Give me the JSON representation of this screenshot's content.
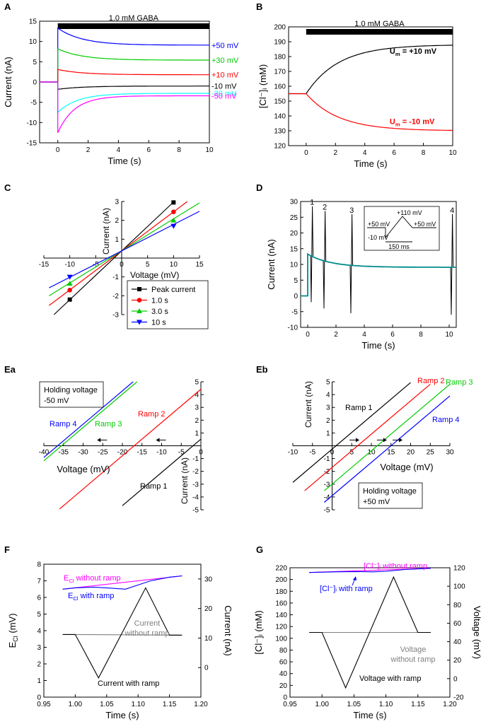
{
  "figure": {
    "colors": {
      "black": "#000000",
      "blue": "#0000ff",
      "green": "#00cc00",
      "red": "#ff0000",
      "cyan": "#00ffff",
      "magenta": "#ff00ff",
      "teal": "#008b8b",
      "gray": "#808080"
    }
  },
  "chart_data": [
    {
      "id": "A",
      "panel_label": "A",
      "type": "line",
      "title": "1.0 mM GABA",
      "xlabel": "Time (s)",
      "ylabel": "Current (nA)",
      "xlim": [
        -1.2,
        10
      ],
      "ylim": [
        -15,
        15
      ],
      "xticks": [
        0,
        2,
        4,
        6,
        8,
        10
      ],
      "xtick_labels": [
        "0",
        "2",
        "4",
        "6",
        "8",
        "10"
      ],
      "yticks": [
        -15,
        -10,
        -5,
        0,
        5,
        10,
        15
      ],
      "ytick_labels": [
        "-15",
        "-10",
        "-5",
        "0",
        "5",
        "10",
        "15"
      ],
      "gaba_bar": [
        0,
        10
      ],
      "series": [
        {
          "name": "+50 mV",
          "color": "#0000ff",
          "pre": 0,
          "peak": 13.3,
          "steady": 9.1,
          "tau": 1.6
        },
        {
          "name": "+30 mV",
          "color": "#00cc00",
          "pre": 0,
          "peak": 8.2,
          "steady": 5.4,
          "tau": 1.6
        },
        {
          "name": "+10 mV",
          "color": "#ff0000",
          "pre": 0,
          "peak": 3.1,
          "steady": 1.8,
          "tau": 1.6
        },
        {
          "name": "-10 mV",
          "color": "#000000",
          "pre": 0,
          "peak": -1.8,
          "steady": -1.0,
          "tau": 1.6
        },
        {
          "name": "-30 mV",
          "color": "#00ffff",
          "pre": 0,
          "peak": -7.5,
          "steady": -2.8,
          "tau": 1.3
        },
        {
          "name": "-50 mV",
          "color": "#ff00ff",
          "pre": 0,
          "peak": -12.5,
          "steady": -3.4,
          "tau": 1.1
        }
      ]
    },
    {
      "id": "B",
      "panel_label": "B",
      "type": "line",
      "title": "1.0 mM GABA",
      "xlabel": "Time (s)",
      "ylabel": "[Cl⁻]ᵢ (mM)",
      "xlim": [
        -1.2,
        10
      ],
      "ylim": [
        120,
        200
      ],
      "xticks": [
        0,
        2,
        4,
        6,
        8,
        10
      ],
      "xtick_labels": [
        "0",
        "2",
        "4",
        "6",
        "8",
        "10"
      ],
      "yticks": [
        120,
        130,
        140,
        150,
        160,
        170,
        180,
        190,
        200
      ],
      "ytick_labels": [
        "120",
        "130",
        "140",
        "150",
        "160",
        "170",
        "180",
        "190",
        "200"
      ],
      "gaba_bar": [
        0,
        10
      ],
      "series": [
        {
          "name": "U_m = +10 mV",
          "label_main": "U",
          "label_sub": "m",
          "label_rest": " = +10 mV",
          "color": "#000000",
          "start": 155,
          "steady": 188,
          "tau": 2.2
        },
        {
          "name": "U_m = -10 mV",
          "label_main": "U",
          "label_sub": "m",
          "label_rest": " = -10 mV",
          "color": "#ff0000",
          "start": 155,
          "steady": 130,
          "tau": 2.2
        }
      ]
    },
    {
      "id": "C",
      "panel_label": "C",
      "type": "scatter",
      "xlabel": "Voltage (mV)",
      "ylabel": "Current (nA)",
      "xlim": [
        -15,
        15
      ],
      "ylim": [
        -3,
        3
      ],
      "xticks": [
        -15,
        -10,
        -5,
        0,
        5,
        10,
        15
      ],
      "xtick_labels": [
        "-15",
        "-10",
        "-5",
        "0",
        "5",
        "10",
        "15"
      ],
      "yticks": [
        -3,
        -2,
        -1,
        1,
        2,
        3
      ],
      "ytick_labels": [
        "-3",
        "-2",
        "-1",
        "1",
        "2",
        "3"
      ],
      "legend": "lower-right",
      "series": [
        {
          "name": "Peak current",
          "color": "#000000",
          "marker": "square",
          "x": [
            -10,
            10
          ],
          "y": [
            -2.2,
            2.95
          ],
          "slope": 0.259,
          "intercept": 0.38
        },
        {
          "name": "1.0 s",
          "color": "#ff0000",
          "marker": "circle",
          "x": [
            -10,
            10
          ],
          "y": [
            -1.7,
            2.45
          ],
          "slope": 0.207,
          "intercept": 0.38
        },
        {
          "name": "3.0 s",
          "color": "#00cc00",
          "marker": "triangle-up",
          "x": [
            -10,
            10
          ],
          "y": [
            -1.35,
            2.0
          ],
          "slope": 0.17,
          "intercept": 0.38
        },
        {
          "name": "10 s",
          "color": "#0000ff",
          "marker": "triangle-down",
          "x": [
            -10,
            10
          ],
          "y": [
            -1.0,
            1.7
          ],
          "slope": 0.14,
          "intercept": 0.38
        }
      ]
    },
    {
      "id": "D",
      "panel_label": "D",
      "type": "line",
      "xlabel": "Time (s)",
      "ylabel": "Current (nA)",
      "xlim": [
        -0.5,
        10.5
      ],
      "ylim": [
        -10,
        30
      ],
      "xticks": [
        0,
        2,
        4,
        6,
        8,
        10
      ],
      "xtick_labels": [
        "0",
        "2",
        "4",
        "6",
        "8",
        "10"
      ],
      "yticks": [
        -10,
        -5,
        0,
        5,
        10,
        15,
        20,
        25,
        30
      ],
      "ytick_labels": [
        "-10",
        "-5",
        "0",
        "5",
        "10",
        "15",
        "20",
        "25",
        "30"
      ],
      "trace": {
        "color": "#008b8b",
        "peak": 13.3,
        "steady": 9.1,
        "tau": 1.6
      },
      "ramps": [
        {
          "label": "1",
          "t": 0.25,
          "max": 28.5,
          "min": -2.0
        },
        {
          "label": "2",
          "t": 1.15,
          "max": 27.0,
          "min": -4.0
        },
        {
          "label": "3",
          "t": 3.05,
          "max": 26.0,
          "min": -5.5
        },
        {
          "label": "4",
          "t": 10.15,
          "max": 26.0,
          "min": -6.0
        }
      ],
      "inset": {
        "labels": [
          "+110 mV",
          "+50 mV",
          "+50 mV",
          "-10 mV",
          "150 ms"
        ]
      }
    },
    {
      "id": "Ea",
      "panel_label": "Ea",
      "type": "line",
      "xlabel": "Voltage (mV)",
      "ylabel": "Current (nA)",
      "xlim": [
        -40,
        0
      ],
      "ylim": [
        -5,
        5
      ],
      "xticks": [
        -40,
        -35,
        -30,
        -25,
        -20,
        -15,
        -10,
        -5,
        0
      ],
      "xtick_labels": [
        "-40",
        "-35",
        "-30",
        "-25",
        "-20",
        "-15",
        "-10",
        "-5",
        "0"
      ],
      "yticks": [
        -5,
        -4,
        -3,
        -2,
        -1,
        1,
        2,
        3,
        4,
        5
      ],
      "ytick_labels": [
        "-5",
        "-4",
        "-3",
        "-2",
        "-1",
        "1",
        "2",
        "3",
        "4",
        "5"
      ],
      "note": [
        "Holding voltage",
        "-50 mV"
      ],
      "series": [
        {
          "name": "Ramp 1",
          "color": "#000000",
          "x0": -2,
          "slope": 0.26,
          "xr": [
            -20,
            0
          ]
        },
        {
          "name": "Ramp 2",
          "color": "#ff0000",
          "x0": -17,
          "slope": 0.26,
          "xr": [
            -36,
            0
          ]
        },
        {
          "name": "Ramp 3",
          "color": "#00cc00",
          "x0": -35.5,
          "slope": 0.26,
          "xr": [
            -40,
            -16
          ]
        },
        {
          "name": "Ramp 4",
          "color": "#0000ff",
          "x0": -36.5,
          "slope": 0.26,
          "xr": [
            -40,
            -15
          ]
        }
      ],
      "arrows": [
        {
          "x": -25,
          "y": 0.45
        },
        {
          "x": -10,
          "y": 0.45
        }
      ]
    },
    {
      "id": "Eb",
      "panel_label": "Eb",
      "type": "line",
      "xlabel": "Voltage (mV)",
      "ylabel": "Current (nA)",
      "xlim": [
        -10,
        30
      ],
      "ylim": [
        -5,
        5
      ],
      "xticks": [
        -10,
        -5,
        0,
        5,
        10,
        15,
        20,
        25,
        30
      ],
      "xtick_labels": [
        "-10",
        "-5",
        "0",
        "5",
        "10",
        "15",
        "20",
        "25",
        "30"
      ],
      "yticks": [
        -5,
        -4,
        -3,
        -2,
        -1,
        1,
        2,
        3,
        4,
        5
      ],
      "ytick_labels": [
        "-5",
        "-4",
        "-3",
        "-2",
        "-1",
        "1",
        "2",
        "3",
        "4",
        "5"
      ],
      "note": [
        "Holding voltage",
        "+50 mV"
      ],
      "series": [
        {
          "name": "Ramp 1",
          "color": "#000000",
          "x0": 1,
          "slope": 0.26,
          "xr": [
            -10,
            20
          ]
        },
        {
          "name": "Ramp 2",
          "color": "#ff0000",
          "x0": 6.5,
          "slope": 0.26,
          "xr": [
            -7,
            25
          ]
        },
        {
          "name": "Ramp 3",
          "color": "#00cc00",
          "x0": 11.5,
          "slope": 0.26,
          "xr": [
            -2,
            30
          ]
        },
        {
          "name": "Ramp 4",
          "color": "#0000ff",
          "x0": 15,
          "slope": 0.26,
          "xr": [
            -2,
            30
          ]
        }
      ],
      "arrows": [
        {
          "x": 5.5,
          "y": 0.45
        },
        {
          "x": 12.5,
          "y": 0.45
        },
        {
          "x": 16.5,
          "y": 0.45
        }
      ]
    },
    {
      "id": "F",
      "panel_label": "F",
      "type": "line",
      "xlabel": "Time (s)",
      "ylabel_left_main": "E",
      "ylabel_left_sub": "Cl",
      "ylabel_left_rest": " (mV)",
      "ylabel_right": "Current (nA)",
      "xlim": [
        0.95,
        1.2
      ],
      "ylim_left": [
        0,
        8
      ],
      "ylim_right": [
        -10,
        35
      ],
      "xticks": [
        0.95,
        1.0,
        1.05,
        1.1,
        1.15,
        1.2
      ],
      "xtick_labels": [
        "0.95",
        "1.00",
        "1.05",
        "1.10",
        "1.15",
        "1.20"
      ],
      "yticks_left": [
        0,
        1,
        2,
        3,
        4,
        5,
        6,
        7,
        8
      ],
      "ytick_labels_left": [
        "0",
        "1",
        "2",
        "3",
        "4",
        "5",
        "6",
        "7",
        "8"
      ],
      "yticks_right": [
        0,
        10,
        20,
        30
      ],
      "ytick_labels_right": [
        "0",
        "10",
        "20",
        "30"
      ],
      "series": [
        {
          "name": "E_Cl without ramp",
          "color": "#ff00ff",
          "axis": "left",
          "x": [
            0.98,
            1.17
          ],
          "y": [
            6.5,
            7.3
          ]
        },
        {
          "name": "E_Cl with ramp",
          "color": "#0000ff",
          "axis": "left",
          "x": [
            0.98,
            1.0,
            1.03,
            1.06,
            1.08,
            1.1,
            1.12,
            1.15,
            1.17
          ],
          "y": [
            6.5,
            6.58,
            6.62,
            6.55,
            6.5,
            6.75,
            7.0,
            7.22,
            7.3
          ]
        },
        {
          "name": "Current without ramp",
          "color": "#808080",
          "axis": "right",
          "x": [
            0.98,
            1.17
          ],
          "y": [
            11.2,
            11.0
          ]
        },
        {
          "name": "Current with ramp",
          "color": "#000000",
          "axis": "right",
          "x": [
            0.98,
            1.0,
            1.037,
            1.112,
            1.15,
            1.17
          ],
          "y": [
            11.2,
            11.2,
            -3.5,
            27.0,
            11.0,
            11.0
          ]
        }
      ],
      "labels": {
        "e_without_main": "E",
        "e_without_sub": "Cl",
        "e_without_rest": " without ramp",
        "e_with_main": "E",
        "e_with_sub": "Cl",
        "e_with_rest": " with ramp",
        "current_without": [
          "Current",
          "without ramp"
        ],
        "current_with": "Current with ramp"
      }
    },
    {
      "id": "G",
      "panel_label": "G",
      "type": "line",
      "xlabel": "Time (s)",
      "ylabel_left": "[Cl⁻]ᵢ (mM)",
      "ylabel_right": "Voltage (mV)",
      "xlim": [
        0.95,
        1.2
      ],
      "ylim_left": [
        0,
        220
      ],
      "ylim_right": [
        -20,
        120
      ],
      "xticks": [
        0.95,
        1.0,
        1.05,
        1.1,
        1.15,
        1.2
      ],
      "xtick_labels": [
        "0.95",
        "1.00",
        "1.05",
        "1.10",
        "1.15",
        "1.20"
      ],
      "yticks_left": [
        0,
        20,
        40,
        60,
        80,
        100,
        120,
        140,
        160,
        180,
        200,
        220
      ],
      "ytick_labels_left": [
        "0",
        "20",
        "40",
        "60",
        "80",
        "100",
        "120",
        "140",
        "160",
        "180",
        "200",
        "220"
      ],
      "yticks_right": [
        -20,
        0,
        20,
        40,
        60,
        80,
        100,
        120
      ],
      "ytick_labels_right": [
        "-20",
        "0",
        "20",
        "40",
        "60",
        "80",
        "100",
        "120"
      ],
      "series": [
        {
          "name": "[Cl-]i without ramp",
          "color": "#ff00ff",
          "axis": "left",
          "x": [
            0.98,
            1.17
          ],
          "y": [
            212,
            219
          ]
        },
        {
          "name": "[Cl-]i with ramp",
          "color": "#0000ff",
          "axis": "left",
          "x": [
            0.98,
            1.02,
            1.05,
            1.08,
            1.1,
            1.13,
            1.17
          ],
          "y": [
            212,
            213,
            213.5,
            213,
            214,
            217,
            219
          ]
        },
        {
          "name": "Voltage without ramp",
          "color": "#808080",
          "axis": "right",
          "x": [
            0.98,
            1.17
          ],
          "y": [
            50,
            50
          ]
        },
        {
          "name": "Voltage with ramp",
          "color": "#000000",
          "axis": "right",
          "x": [
            0.98,
            1.0,
            1.037,
            1.112,
            1.15,
            1.17
          ],
          "y": [
            50,
            50,
            -10,
            110,
            50,
            50
          ]
        }
      ],
      "labels": {
        "cl_without": "[Cl⁻]ᵢ without ramp",
        "cl_with": "[Cl⁻]ᵢ with ramp",
        "voltage_without": [
          "Voltage",
          "without ramp"
        ],
        "voltage_with": "Voltage with ramp"
      }
    }
  ]
}
